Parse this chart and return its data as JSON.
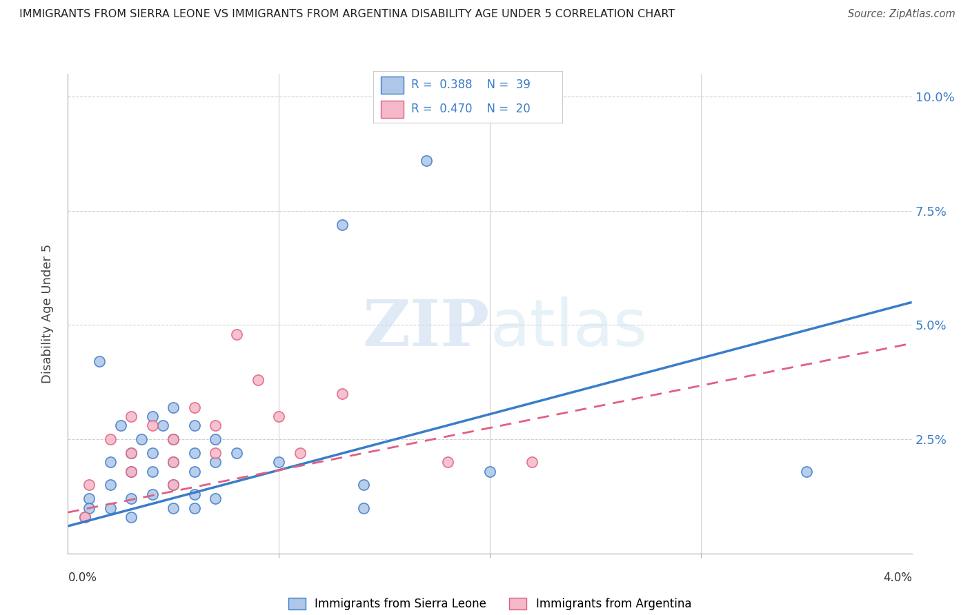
{
  "title": "IMMIGRANTS FROM SIERRA LEONE VS IMMIGRANTS FROM ARGENTINA DISABILITY AGE UNDER 5 CORRELATION CHART",
  "source": "Source: ZipAtlas.com",
  "ylabel": "Disability Age Under 5",
  "xlim": [
    0.0,
    0.04
  ],
  "ylim": [
    0.0,
    0.105
  ],
  "watermark_zip": "ZIP",
  "watermark_atlas": "atlas",
  "sierra_leone_color": "#aec6e8",
  "argentina_color": "#f5b8c8",
  "sierra_leone_line_color": "#3a7dc9",
  "argentina_line_color": "#e06080",
  "sierra_leone_scatter": [
    [
      0.0008,
      0.008
    ],
    [
      0.001,
      0.012
    ],
    [
      0.001,
      0.01
    ],
    [
      0.0015,
      0.042
    ],
    [
      0.002,
      0.02
    ],
    [
      0.002,
      0.015
    ],
    [
      0.002,
      0.01
    ],
    [
      0.0025,
      0.028
    ],
    [
      0.003,
      0.022
    ],
    [
      0.003,
      0.018
    ],
    [
      0.003,
      0.012
    ],
    [
      0.003,
      0.008
    ],
    [
      0.0035,
      0.025
    ],
    [
      0.004,
      0.03
    ],
    [
      0.004,
      0.022
    ],
    [
      0.004,
      0.018
    ],
    [
      0.004,
      0.013
    ],
    [
      0.0045,
      0.028
    ],
    [
      0.005,
      0.032
    ],
    [
      0.005,
      0.025
    ],
    [
      0.005,
      0.02
    ],
    [
      0.005,
      0.015
    ],
    [
      0.005,
      0.01
    ],
    [
      0.006,
      0.028
    ],
    [
      0.006,
      0.022
    ],
    [
      0.006,
      0.018
    ],
    [
      0.006,
      0.013
    ],
    [
      0.006,
      0.01
    ],
    [
      0.007,
      0.025
    ],
    [
      0.007,
      0.02
    ],
    [
      0.007,
      0.012
    ],
    [
      0.008,
      0.022
    ],
    [
      0.01,
      0.02
    ],
    [
      0.013,
      0.072
    ],
    [
      0.014,
      0.015
    ],
    [
      0.014,
      0.01
    ],
    [
      0.017,
      0.086
    ],
    [
      0.02,
      0.018
    ],
    [
      0.035,
      0.018
    ]
  ],
  "argentina_scatter": [
    [
      0.0008,
      0.008
    ],
    [
      0.001,
      0.015
    ],
    [
      0.002,
      0.025
    ],
    [
      0.003,
      0.022
    ],
    [
      0.003,
      0.018
    ],
    [
      0.003,
      0.03
    ],
    [
      0.004,
      0.028
    ],
    [
      0.005,
      0.025
    ],
    [
      0.005,
      0.02
    ],
    [
      0.005,
      0.015
    ],
    [
      0.006,
      0.032
    ],
    [
      0.007,
      0.028
    ],
    [
      0.007,
      0.022
    ],
    [
      0.008,
      0.048
    ],
    [
      0.009,
      0.038
    ],
    [
      0.01,
      0.03
    ],
    [
      0.011,
      0.022
    ],
    [
      0.013,
      0.035
    ],
    [
      0.018,
      0.02
    ],
    [
      0.022,
      0.02
    ]
  ],
  "grid_color": "#d0d0d0",
  "background_color": "#ffffff",
  "sl_trend": [
    0.006,
    1.22
  ],
  "ar_trend": [
    0.009,
    1.05
  ]
}
